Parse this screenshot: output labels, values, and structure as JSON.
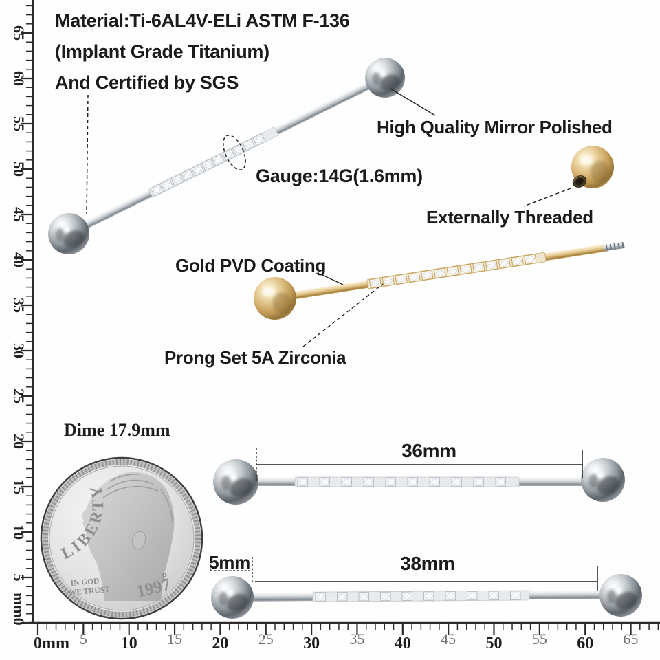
{
  "annotations": {
    "material_line1": "Material:Ti-6AL4V-ELi ASTM F-136",
    "material_line2": "(Implant Grade Titanium)",
    "material_line3": "And Certified by SGS",
    "mirror_polished": "High Quality Mirror Polished",
    "gauge": "Gauge:14G(1.6mm)",
    "externally_threaded": "Externally Threaded",
    "gold_pvd": "Gold PVD Coating",
    "prong_set": "Prong Set 5A Zirconia",
    "dime": "Dime 17.9mm"
  },
  "measurements": {
    "bar36": "36mm",
    "bar38": "38mm",
    "ball": "5mm"
  },
  "coin": {
    "liberty": "LIBERTY",
    "motto_line1": "IN GOD",
    "motto_line2": "WE TRUST",
    "year": "1997",
    "mint_mark": "P"
  },
  "ruler": {
    "left_labels": [
      {
        "t": "65",
        "mm": 65
      },
      {
        "t": "60",
        "mm": 60
      },
      {
        "t": "55",
        "mm": 55
      },
      {
        "t": "50",
        "mm": 50
      },
      {
        "t": "45",
        "mm": 45
      },
      {
        "t": "40",
        "mm": 40
      },
      {
        "t": "35",
        "mm": 35
      },
      {
        "t": "30",
        "mm": 30
      },
      {
        "t": "25",
        "mm": 25
      },
      {
        "t": "20",
        "mm": 20
      },
      {
        "t": "15",
        "mm": 15
      },
      {
        "t": "10",
        "mm": 10
      },
      {
        "t": "5",
        "mm": 5
      },
      {
        "t": "mm0",
        "mm": 1.6
      }
    ],
    "bottom_labels": [
      {
        "t": "0mm",
        "mm": 0,
        "muted": false
      },
      {
        "t": "5",
        "mm": 5,
        "muted": true
      },
      {
        "t": "10",
        "mm": 10,
        "muted": false
      },
      {
        "t": "15",
        "mm": 15,
        "muted": true
      },
      {
        "t": "20",
        "mm": 20,
        "muted": false
      },
      {
        "t": "25",
        "mm": 25,
        "muted": true
      },
      {
        "t": "30",
        "mm": 30,
        "muted": false
      },
      {
        "t": "35",
        "mm": 35,
        "muted": true
      },
      {
        "t": "40",
        "mm": 40,
        "muted": false
      },
      {
        "t": "45",
        "mm": 45,
        "muted": true
      },
      {
        "t": "50",
        "mm": 50,
        "muted": false
      },
      {
        "t": "55",
        "mm": 55,
        "muted": true
      },
      {
        "t": "60",
        "mm": 60,
        "muted": false
      },
      {
        "t": "65",
        "mm": 65,
        "muted": true
      }
    ]
  },
  "colors": {
    "ink": "#1b1b1b",
    "ruler": "#2b2b2b",
    "muted_number": "#6f6f6f",
    "silver": "#9aa0a5",
    "gold": "#c8a662",
    "coin_text": "#8f8f8f"
  }
}
